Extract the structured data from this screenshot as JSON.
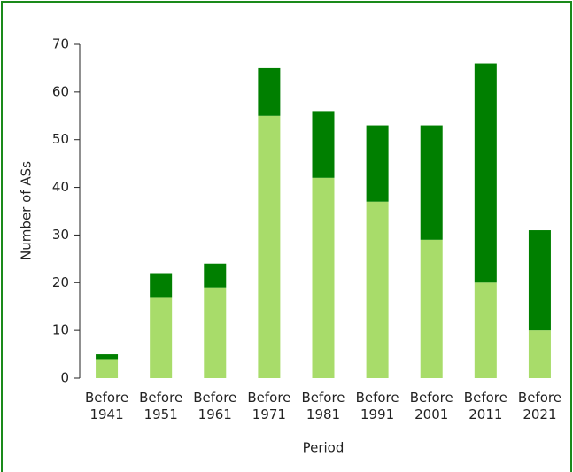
{
  "chart_data": {
    "type": "stacked_bar",
    "x_label": "Period",
    "y_label": "Number of ASs",
    "categories": [
      "Before 1941",
      "Before 1951",
      "Before 1961",
      "Before 1971",
      "Before 1981",
      "Before 1991",
      "Before 2001",
      "Before 2011",
      "Before 2021"
    ],
    "series": [
      {
        "color": "#a8dc6a",
        "values": [
          4,
          17,
          19,
          55,
          42,
          37,
          29,
          20,
          10
        ]
      },
      {
        "color": "#007f00",
        "values": [
          1,
          5,
          5,
          10,
          14,
          16,
          24,
          46,
          21
        ]
      }
    ],
    "ylim": [
      0,
      70
    ],
    "yticks": [
      0,
      10,
      20,
      30,
      40,
      50,
      60,
      70
    ]
  }
}
